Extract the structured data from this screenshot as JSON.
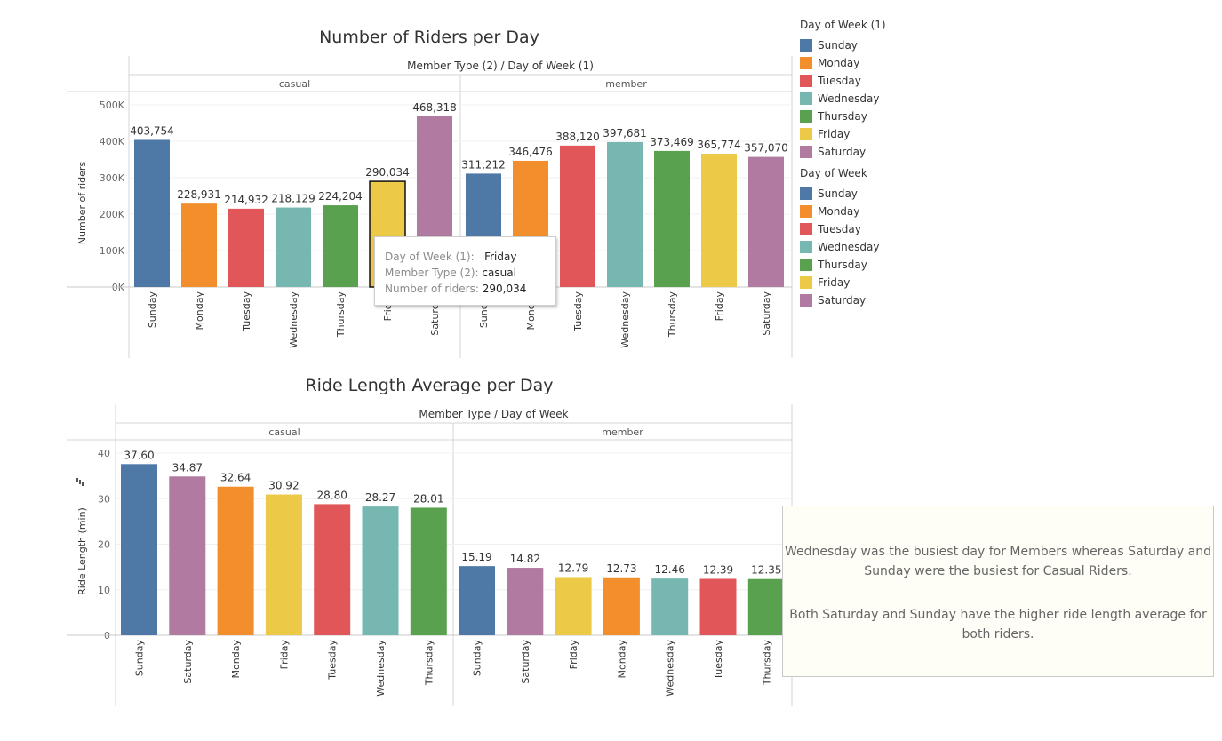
{
  "chart_data": [
    {
      "type": "bar",
      "title": "Number of Riders per Day",
      "header": "Member Type (2) / Day of Week (1)",
      "ylabel": "Number of riders",
      "ylim": [
        0,
        500000
      ],
      "yticks": [
        "0K",
        "100K",
        "200K",
        "300K",
        "400K",
        "500K"
      ],
      "ytick_values": [
        0,
        100000,
        200000,
        300000,
        400000,
        500000
      ],
      "panes": [
        {
          "name": "casual",
          "categories": [
            "Sunday",
            "Monday",
            "Tuesday",
            "Wednesday",
            "Thursday",
            "Friday",
            "Saturday"
          ],
          "values": [
            403754,
            228931,
            214932,
            218129,
            224204,
            290034,
            468318
          ],
          "labels": [
            "403,754",
            "228,931",
            "214,932",
            "218,129",
            "224,204",
            "290,034",
            "468,318"
          ]
        },
        {
          "name": "member",
          "categories": [
            "Sunday",
            "Monday",
            "Tuesday",
            "Wednesday",
            "Thursday",
            "Friday",
            "Saturday"
          ],
          "values": [
            311212,
            346476,
            388120,
            397681,
            373469,
            365774,
            357070
          ],
          "labels": [
            "311,212",
            "346,476",
            "388,120",
            "397,681",
            "373,469",
            "365,774",
            "357,070"
          ]
        }
      ],
      "highlight": {
        "pane": "casual",
        "category": "Friday"
      }
    },
    {
      "type": "bar",
      "title": "Ride Length Average per Day",
      "header": "Member Type / Day of Week",
      "ylabel": "Ride Length (min)",
      "ylim": [
        0,
        40
      ],
      "yticks": [
        "0",
        "10",
        "20",
        "30",
        "40"
      ],
      "ytick_values": [
        0,
        10,
        20,
        30,
        40
      ],
      "panes": [
        {
          "name": "casual",
          "categories": [
            "Sunday",
            "Saturday",
            "Monday",
            "Friday",
            "Tuesday",
            "Wednesday",
            "Thursday"
          ],
          "values": [
            37.6,
            34.87,
            32.64,
            30.92,
            28.8,
            28.27,
            28.01
          ],
          "labels": [
            "37.60",
            "34.87",
            "32.64",
            "30.92",
            "28.80",
            "28.27",
            "28.01"
          ]
        },
        {
          "name": "member",
          "categories": [
            "Sunday",
            "Saturday",
            "Friday",
            "Monday",
            "Wednesday",
            "Tuesday",
            "Thursday"
          ],
          "values": [
            15.19,
            14.82,
            12.79,
            12.73,
            12.46,
            12.39,
            12.35
          ],
          "labels": [
            "15.19",
            "14.82",
            "12.79",
            "12.73",
            "12.46",
            "12.39",
            "12.35"
          ]
        }
      ]
    }
  ],
  "colors": {
    "Sunday": "#4e79a7",
    "Monday": "#f28e2b",
    "Tuesday": "#e15759",
    "Wednesday": "#76b7b2",
    "Thursday": "#59a14f",
    "Friday": "#edc948",
    "Saturday": "#b07aa1"
  },
  "legends": [
    {
      "title": "Day of Week (1)",
      "items": [
        "Sunday",
        "Monday",
        "Tuesday",
        "Wednesday",
        "Thursday",
        "Friday",
        "Saturday"
      ]
    },
    {
      "title": "Day of Week",
      "items": [
        "Sunday",
        "Monday",
        "Tuesday",
        "Wednesday",
        "Thursday",
        "Friday",
        "Saturday"
      ]
    }
  ],
  "tooltip": {
    "rows": [
      {
        "key": "Day of Week (1):",
        "value": "Friday"
      },
      {
        "key": "Member Type (2):",
        "value": "casual"
      },
      {
        "key": "Number of riders:",
        "value": "290,034"
      }
    ]
  },
  "note": {
    "line1": "Wednesday was the busiest day for Members whereas Saturday and Sunday were the busiest for Casual Riders.",
    "line2": "Both Saturday and Sunday have the higher ride length average for both riders."
  }
}
